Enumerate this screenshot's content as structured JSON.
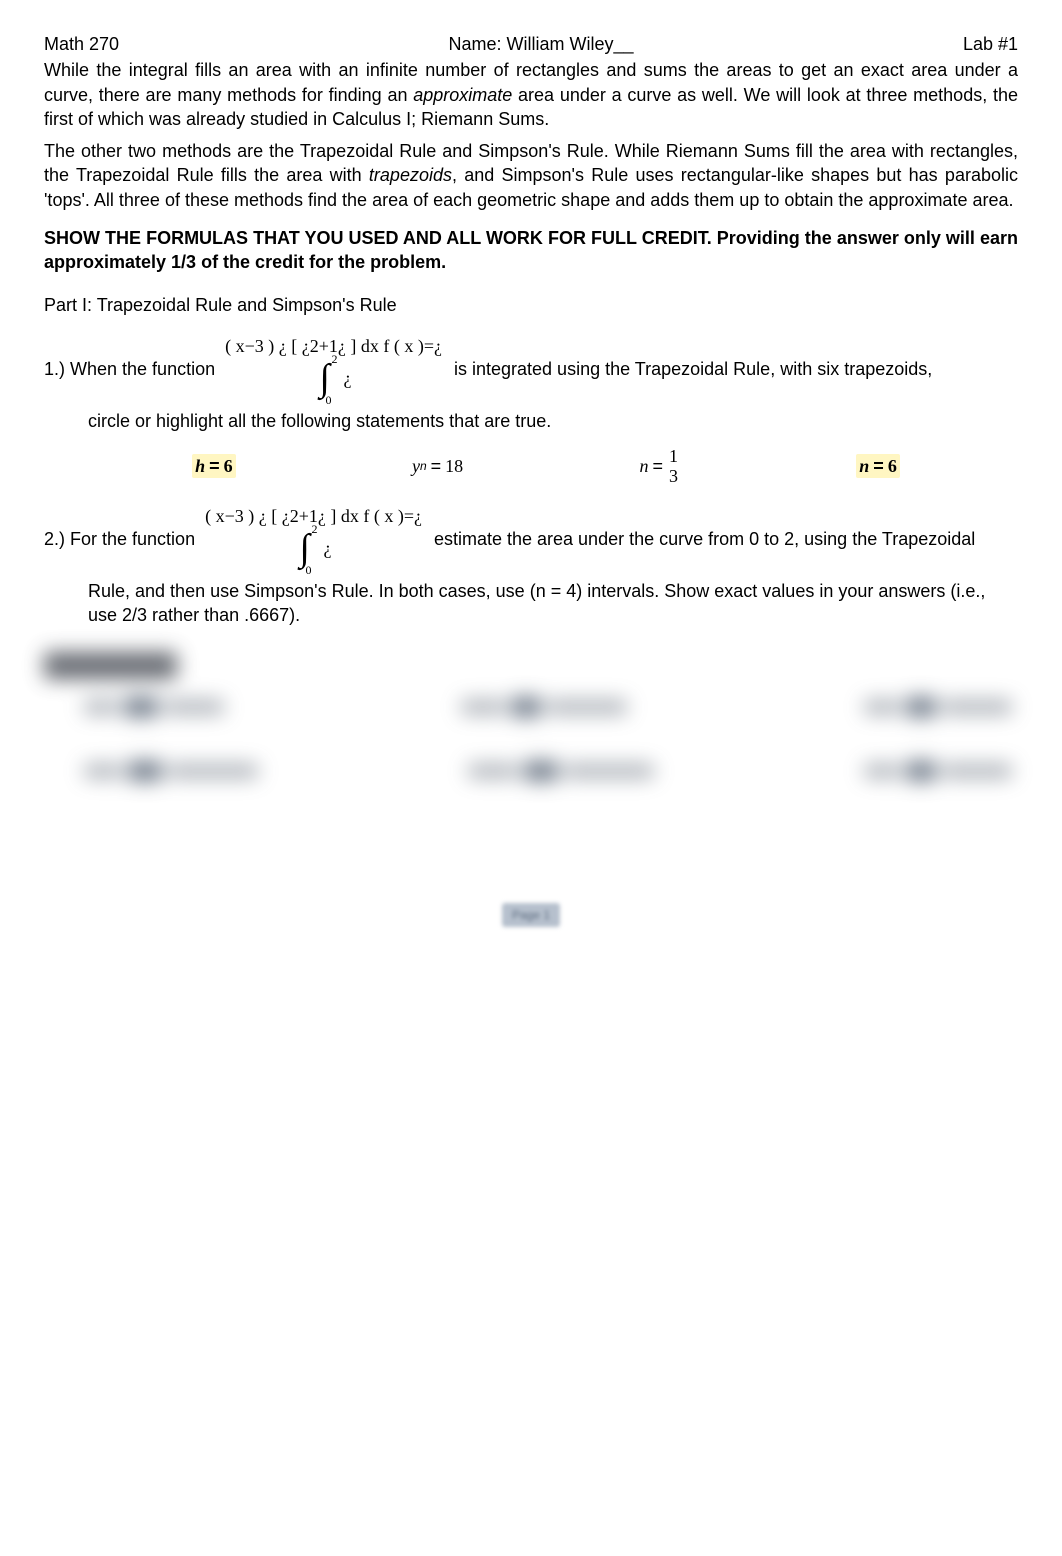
{
  "header": {
    "course": "Math 270",
    "name_label": "Name: William Wiley__",
    "lab": "Lab #1"
  },
  "intro": {
    "p1_a": "While the integral fills an area with an infinite number of rectangles and sums the areas to get an exact area under a curve, there are many methods for finding an ",
    "p1_ital": "approximate",
    "p1_b": " area under a curve as well. We will look at three methods, the first of which was already studied in Calculus I; Riemann Sums.",
    "p2_a": "The other two methods are the Trapezoidal Rule and Simpson's Rule. While Riemann Sums fill the area with rectangles, the Trapezoidal Rule fills the area with ",
    "p2_ital": "trapezoids",
    "p2_b": ", and Simpson's Rule uses rectangular-like shapes but has parabolic 'tops'. All three of these methods find the area of each geometric shape and adds them up to obtain the approximate area."
  },
  "instructions": "SHOW THE FORMULAS THAT YOU USED AND ALL WORK FOR FULL CREDIT.  Providing the answer only will earn approximately 1/3 of the credit for the problem.",
  "part1_title": "Part I: Trapezoidal Rule and Simpson's Rule",
  "q1": {
    "prefix": "1.) When the function",
    "math": {
      "l1": "( x−3 )",
      "l2": "¿",
      "l3": "[ ¿2+1¿ ] dx",
      "l4": "f ( x )=¿",
      "upper": "2",
      "lower": "0",
      "tail": "¿"
    },
    "suffix": "is integrated using the Trapezoidal Rule, with six trapezoids,",
    "note": "circle or highlight all the following statements that are true."
  },
  "options": {
    "a": {
      "var": "h",
      "eq": "=",
      "val": "6",
      "highlighted": true,
      "bold": true
    },
    "b": {
      "var": "y",
      "sub": "n",
      "eq": "=",
      "val": "18",
      "highlighted": false,
      "bold": false
    },
    "c": {
      "var": "n",
      "eq": "=",
      "num": "1",
      "den": "3",
      "highlighted": false,
      "bold": false
    },
    "d": {
      "var": "n",
      "eq": "=",
      "val": "6",
      "highlighted": true,
      "bold": true
    }
  },
  "q2": {
    "prefix": "2.) For the function",
    "math": {
      "l1": "( x−3 )",
      "l2": "¿",
      "l3": "[ ¿2+1¿ ] dx",
      "l4": "f ( x )=¿",
      "upper": "2",
      "lower": "0",
      "tail": "¿"
    },
    "suffix": "estimate the area under the curve from 0 to 2, using the Trapezoidal",
    "note": "Rule, and then use Simpson's Rule. In both cases, use (n = 4) intervals. Show exact values in your answers (i.e., use 2/3 rather than .6667)."
  },
  "blurred": {
    "heading": "Trapezoidal Rule",
    "rows": [
      [
        {
          "l": 34,
          "d": 34,
          "r": 60
        },
        {
          "l": 44,
          "d": 30,
          "r": 80
        },
        {
          "l": 36,
          "d": 30,
          "r": 70
        }
      ],
      [
        {
          "l": 38,
          "d": 34,
          "r": 90
        },
        {
          "l": 50,
          "d": 34,
          "r": 90
        },
        {
          "l": 36,
          "d": 30,
          "r": 70
        }
      ]
    ]
  },
  "footer": {
    "page": "Page 1"
  },
  "colors": {
    "highlight_bg": "#fff6c2",
    "text": "#000000",
    "blur_pill": "#8a919b",
    "blur_dot": "#3b4a5e",
    "blur_heading": "#333842",
    "page_badge_bg": "#b6c0cd",
    "page_badge_fg": "#5b6a7e"
  }
}
